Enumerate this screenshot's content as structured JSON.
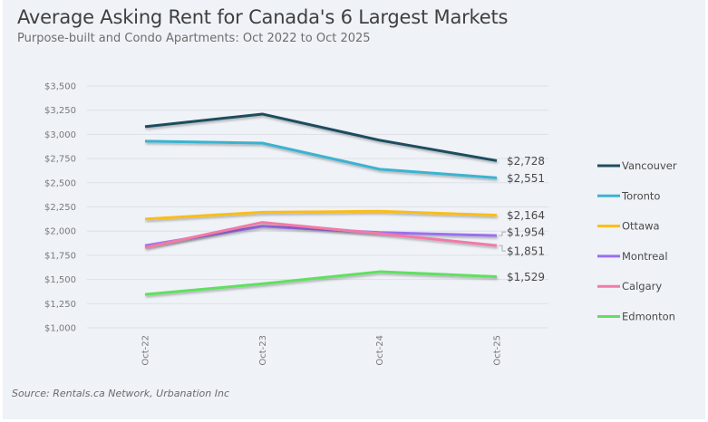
{
  "chart_data": {
    "type": "line",
    "title": "Average Asking Rent for Canada's 6 Largest Markets",
    "subtitle": "Purpose-built and Condo Apartments: Oct 2022 to Oct 2025",
    "source": "Source: Rentals.ca Network, Urbanation Inc",
    "xlabel": "",
    "ylabel": "",
    "categories": [
      "Oct-22",
      "Oct-23",
      "Oct-24",
      "Oct-25"
    ],
    "ylim": [
      1000,
      3500
    ],
    "yticks": [
      1000,
      1250,
      1500,
      1750,
      2000,
      2250,
      2500,
      2750,
      3000,
      3250,
      3500
    ],
    "ytick_labels": [
      "$1,000",
      "$1,250",
      "$1,500",
      "$1,750",
      "$2,000",
      "$2,250",
      "$2,500",
      "$2,750",
      "$3,000",
      "$3,250",
      "$3,500"
    ],
    "grid": true,
    "legend_position": "right",
    "series": [
      {
        "name": "Vancouver",
        "color": "#1f4e5f",
        "values": [
          3080,
          3210,
          2940,
          2728
        ],
        "end_label": "$2,728"
      },
      {
        "name": "Toronto",
        "color": "#3bb3d0",
        "values": [
          2930,
          2910,
          2640,
          2551
        ],
        "end_label": "$2,551"
      },
      {
        "name": "Ottawa",
        "color": "#fbbd16",
        "values": [
          2125,
          2195,
          2205,
          2164
        ],
        "end_label": "$2,164"
      },
      {
        "name": "Montreal",
        "color": "#9b6ff0",
        "values": [
          1850,
          2050,
          1985,
          1954
        ],
        "end_label": "$1,954"
      },
      {
        "name": "Calgary",
        "color": "#f27aa6",
        "values": [
          1830,
          2090,
          1975,
          1851
        ],
        "end_label": "$1,851"
      },
      {
        "name": "Edmonton",
        "color": "#5fe05f",
        "values": [
          1345,
          1455,
          1580,
          1529
        ],
        "end_label": "$1,529"
      }
    ]
  }
}
